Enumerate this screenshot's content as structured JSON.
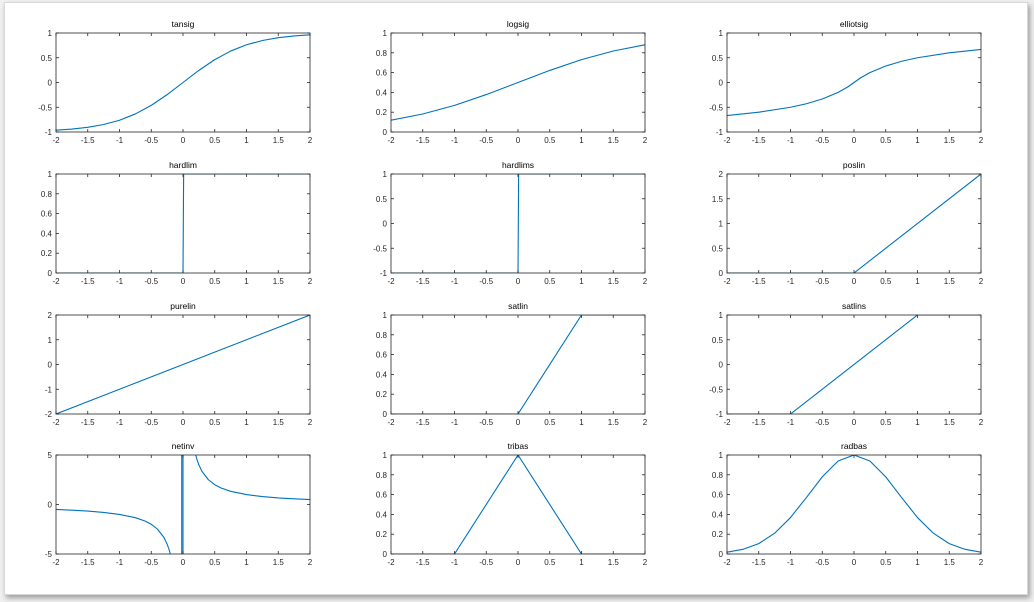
{
  "colors": {
    "line": "#0072BD",
    "axis": "#262626",
    "background": "#ffffff"
  },
  "chart_data": [
    {
      "type": "line",
      "title": "tansig",
      "xlim": [
        -2,
        2
      ],
      "ylim": [
        -1,
        1
      ],
      "xticks": [
        "-2",
        "-1.5",
        "-1",
        "-0.5",
        "0",
        "0.5",
        "1",
        "1.5",
        "2"
      ],
      "yticks": [
        "-1",
        "-0.5",
        "0",
        "0.5",
        "1"
      ],
      "yticks_values": [
        -1,
        -0.5,
        0,
        0.5,
        1
      ],
      "series": [
        {
          "x": [
            -2,
            -1.75,
            -1.5,
            -1.25,
            -1,
            -0.75,
            -0.5,
            -0.25,
            0,
            0.25,
            0.5,
            0.75,
            1,
            1.25,
            1.5,
            1.75,
            2
          ],
          "y": [
            -0.964,
            -0.941,
            -0.905,
            -0.848,
            -0.762,
            -0.635,
            -0.462,
            -0.245,
            0,
            0.245,
            0.462,
            0.635,
            0.762,
            0.848,
            0.905,
            0.941,
            0.964
          ]
        }
      ]
    },
    {
      "type": "line",
      "title": "logsig",
      "xlim": [
        -2,
        2
      ],
      "ylim": [
        0,
        1
      ],
      "xticks": [
        "-2",
        "-1.5",
        "-1",
        "-0.5",
        "0",
        "0.5",
        "1",
        "1.5",
        "2"
      ],
      "yticks": [
        "0",
        "0.2",
        "0.4",
        "0.6",
        "0.8",
        "1"
      ],
      "yticks_values": [
        0,
        0.2,
        0.4,
        0.6,
        0.8,
        1
      ],
      "series": [
        {
          "x": [
            -2,
            -1.5,
            -1,
            -0.5,
            0,
            0.5,
            1,
            1.5,
            2
          ],
          "y": [
            0.119,
            0.182,
            0.269,
            0.378,
            0.5,
            0.622,
            0.731,
            0.818,
            0.881
          ]
        }
      ]
    },
    {
      "type": "line",
      "title": "elliotsig",
      "xlim": [
        -2,
        2
      ],
      "ylim": [
        -1,
        1
      ],
      "xticks": [
        "-2",
        "-1.5",
        "-1",
        "-0.5",
        "0",
        "0.5",
        "1",
        "1.5",
        "2"
      ],
      "yticks": [
        "-1",
        "-0.5",
        "0",
        "0.5",
        "1"
      ],
      "yticks_values": [
        -1,
        -0.5,
        0,
        0.5,
        1
      ],
      "series": [
        {
          "x": [
            -2,
            -1.5,
            -1,
            -0.75,
            -0.5,
            -0.25,
            -0.1,
            0,
            0.1,
            0.25,
            0.5,
            0.75,
            1,
            1.5,
            2
          ],
          "y": [
            -0.667,
            -0.6,
            -0.5,
            -0.429,
            -0.333,
            -0.2,
            -0.091,
            0,
            0.091,
            0.2,
            0.333,
            0.429,
            0.5,
            0.6,
            0.667
          ]
        }
      ]
    },
    {
      "type": "line",
      "title": "hardlim",
      "xlim": [
        -2,
        2
      ],
      "ylim": [
        0,
        1
      ],
      "xticks": [
        "-2",
        "-1.5",
        "-1",
        "-0.5",
        "0",
        "0.5",
        "1",
        "1.5",
        "2"
      ],
      "yticks": [
        "0",
        "0.2",
        "0.4",
        "0.6",
        "0.8",
        "1"
      ],
      "yticks_values": [
        0,
        0.2,
        0.4,
        0.6,
        0.8,
        1
      ],
      "series": [
        {
          "x": [
            -2,
            0,
            0.01,
            2
          ],
          "y": [
            0,
            0,
            1,
            1
          ]
        }
      ]
    },
    {
      "type": "line",
      "title": "hardlims",
      "xlim": [
        -2,
        2
      ],
      "ylim": [
        -1,
        1
      ],
      "xticks": [
        "-2",
        "-1.5",
        "-1",
        "-0.5",
        "0",
        "0.5",
        "1",
        "1.5",
        "2"
      ],
      "yticks": [
        "-1",
        "-0.5",
        "0",
        "0.5",
        "1"
      ],
      "yticks_values": [
        -1,
        -0.5,
        0,
        0.5,
        1
      ],
      "series": [
        {
          "x": [
            -2,
            0,
            0.01,
            2
          ],
          "y": [
            -1,
            -1,
            1,
            1
          ]
        }
      ]
    },
    {
      "type": "line",
      "title": "poslin",
      "xlim": [
        -2,
        2
      ],
      "ylim": [
        0,
        2
      ],
      "xticks": [
        "-2",
        "-1.5",
        "-1",
        "-0.5",
        "0",
        "0.5",
        "1",
        "1.5",
        "2"
      ],
      "yticks": [
        "0",
        "0.5",
        "1",
        "1.5",
        "2"
      ],
      "yticks_values": [
        0,
        0.5,
        1,
        1.5,
        2
      ],
      "series": [
        {
          "x": [
            -2,
            0,
            2
          ],
          "y": [
            0,
            0,
            2
          ]
        }
      ]
    },
    {
      "type": "line",
      "title": "purelin",
      "xlim": [
        -2,
        2
      ],
      "ylim": [
        -2,
        2
      ],
      "xticks": [
        "-2",
        "-1.5",
        "-1",
        "-0.5",
        "0",
        "0.5",
        "1",
        "1.5",
        "2"
      ],
      "yticks": [
        "-2",
        "-1",
        "0",
        "1",
        "2"
      ],
      "yticks_values": [
        -2,
        -1,
        0,
        1,
        2
      ],
      "series": [
        {
          "x": [
            -2,
            2
          ],
          "y": [
            -2,
            2
          ]
        }
      ]
    },
    {
      "type": "line",
      "title": "satlin",
      "xlim": [
        -2,
        2
      ],
      "ylim": [
        0,
        1
      ],
      "xticks": [
        "-2",
        "-1.5",
        "-1",
        "-0.5",
        "0",
        "0.5",
        "1",
        "1.5",
        "2"
      ],
      "yticks": [
        "0",
        "0.2",
        "0.4",
        "0.6",
        "0.8",
        "1"
      ],
      "yticks_values": [
        0,
        0.2,
        0.4,
        0.6,
        0.8,
        1
      ],
      "series": [
        {
          "x": [
            -2,
            0,
            1,
            2
          ],
          "y": [
            0,
            0,
            1,
            1
          ]
        }
      ]
    },
    {
      "type": "line",
      "title": "satlins",
      "xlim": [
        -2,
        2
      ],
      "ylim": [
        -1,
        1
      ],
      "xticks": [
        "-2",
        "-1.5",
        "-1",
        "-0.5",
        "0",
        "0.5",
        "1",
        "1.5",
        "2"
      ],
      "yticks": [
        "-1",
        "-0.5",
        "0",
        "0.5",
        "1"
      ],
      "yticks_values": [
        -1,
        -0.5,
        0,
        0.5,
        1
      ],
      "series": [
        {
          "x": [
            -2,
            -1,
            1,
            2
          ],
          "y": [
            -1,
            -1,
            1,
            1
          ]
        }
      ]
    },
    {
      "type": "line",
      "title": "netinv",
      "xlim": [
        -2,
        2
      ],
      "ylim": [
        -5,
        5
      ],
      "xticks": [
        "-2",
        "-1.5",
        "-1",
        "-0.5",
        "0",
        "0.5",
        "1",
        "1.5",
        "2"
      ],
      "yticks": [
        "-5",
        "0",
        "5"
      ],
      "yticks_values": [
        -5,
        0,
        5
      ],
      "series": [
        {
          "x": [
            -2,
            -1.75,
            -1.5,
            -1.25,
            -1,
            -0.75,
            -0.6,
            -0.5,
            -0.4,
            -0.3,
            -0.25,
            -0.22,
            -0.2
          ],
          "y": [
            -0.5,
            -0.571,
            -0.667,
            -0.8,
            -1,
            -1.333,
            -1.667,
            -2,
            -2.5,
            -3.333,
            -4,
            -4.545,
            -5
          ]
        },
        {
          "x": [
            0.2,
            0.22,
            0.25,
            0.3,
            0.4,
            0.5,
            0.6,
            0.75,
            1,
            1.25,
            1.5,
            1.75,
            2
          ],
          "y": [
            5,
            4.545,
            4,
            3.333,
            2.5,
            2,
            1.667,
            1.333,
            1,
            0.8,
            0.667,
            0.571,
            0.5
          ]
        },
        {
          "x": [
            -0.02,
            -0.02,
            0,
            0
          ],
          "y": [
            -5,
            5,
            5,
            -5
          ]
        }
      ]
    },
    {
      "type": "line",
      "title": "tribas",
      "xlim": [
        -2,
        2
      ],
      "ylim": [
        0,
        1
      ],
      "xticks": [
        "-2",
        "-1.5",
        "-1",
        "-0.5",
        "0",
        "0.5",
        "1",
        "1.5",
        "2"
      ],
      "yticks": [
        "0",
        "0.2",
        "0.4",
        "0.6",
        "0.8",
        "1"
      ],
      "yticks_values": [
        0,
        0.2,
        0.4,
        0.6,
        0.8,
        1
      ],
      "series": [
        {
          "x": [
            -2,
            -1,
            0,
            1,
            2
          ],
          "y": [
            0,
            0,
            1,
            0,
            0
          ]
        }
      ]
    },
    {
      "type": "line",
      "title": "radbas",
      "xlim": [
        -2,
        2
      ],
      "ylim": [
        0,
        1
      ],
      "xticks": [
        "-2",
        "-1.5",
        "-1",
        "-0.5",
        "0",
        "0.5",
        "1",
        "1.5",
        "2"
      ],
      "yticks": [
        "0",
        "0.2",
        "0.4",
        "0.6",
        "0.8",
        "1"
      ],
      "yticks_values": [
        0,
        0.2,
        0.4,
        0.6,
        0.8,
        1
      ],
      "series": [
        {
          "x": [
            -2,
            -1.75,
            -1.5,
            -1.25,
            -1,
            -0.75,
            -0.5,
            -0.25,
            0,
            0.25,
            0.5,
            0.75,
            1,
            1.25,
            1.5,
            1.75,
            2
          ],
          "y": [
            0.018,
            0.047,
            0.105,
            0.21,
            0.368,
            0.57,
            0.779,
            0.939,
            1,
            0.939,
            0.779,
            0.57,
            0.368,
            0.21,
            0.105,
            0.047,
            0.018
          ]
        }
      ]
    }
  ]
}
